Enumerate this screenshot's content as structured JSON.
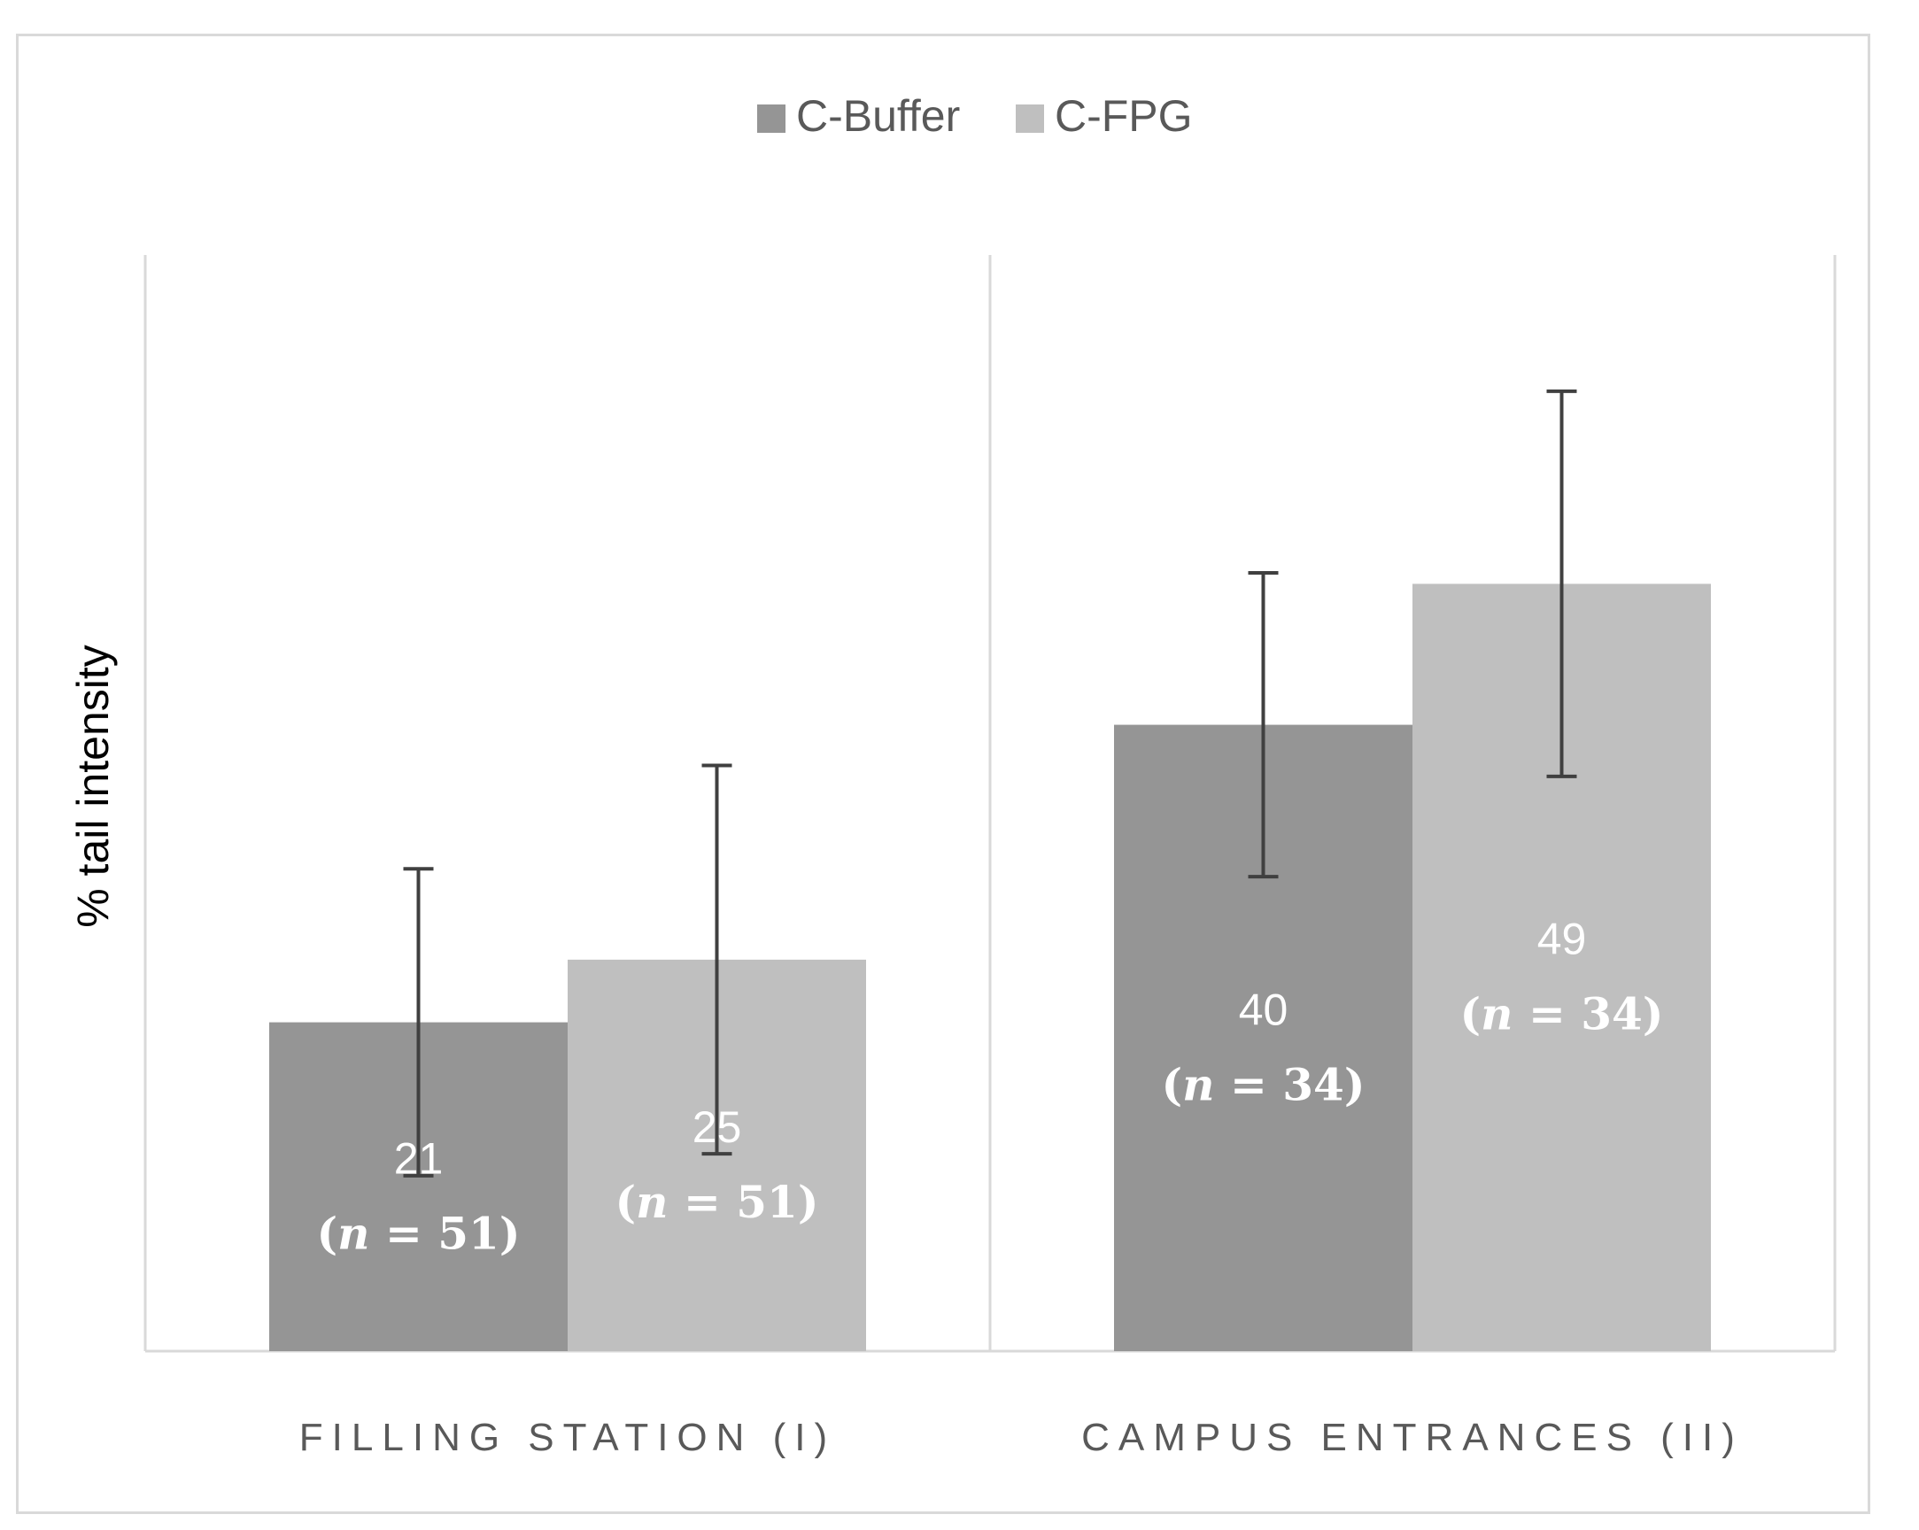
{
  "chart_data": {
    "type": "bar",
    "title": "",
    "xlabel": "",
    "ylabel": "% tail intensity",
    "ylim": [
      0,
      70
    ],
    "grid": false,
    "legend_position": "top",
    "show_y_ticks": false,
    "group_dividers": true,
    "categories": [
      "FILLING STATION (I)",
      "CAMPUS ENTRANCES (II)"
    ],
    "series": [
      {
        "name": "C-Buffer",
        "color": "#959595",
        "values": [
          21,
          40
        ],
        "errors": [
          9.8,
          9.7
        ],
        "value_labels": [
          "21",
          "40"
        ],
        "n_labels": [
          "51",
          "34"
        ]
      },
      {
        "name": "C-FPG",
        "color": "#bfbfbf",
        "values": [
          25,
          49
        ],
        "errors": [
          12.4,
          12.3
        ],
        "value_labels": [
          "25",
          "49"
        ],
        "n_labels": [
          "51",
          "34"
        ]
      }
    ],
    "error_bar_color": "#404040",
    "axis_color": "#d9d9d9",
    "n_prefix": "(",
    "n_variable": "n",
    "n_equals": " = ",
    "n_suffix": ")"
  }
}
